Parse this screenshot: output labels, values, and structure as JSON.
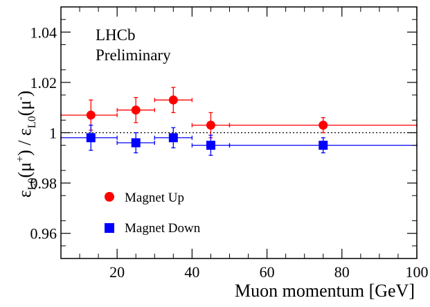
{
  "chart_data": {
    "type": "scatter",
    "xlabel": "Muon momentum [GeV]",
    "ylabel": "ε_L0(μ⁺) / ε_L0(μ⁻)",
    "xlim": [
      5,
      100
    ],
    "ylim": [
      0.95,
      1.05
    ],
    "x_ticks": [
      {
        "value": 20,
        "label": "20"
      },
      {
        "value": 40,
        "label": "40"
      },
      {
        "value": 60,
        "label": "60"
      },
      {
        "value": 80,
        "label": "80"
      },
      {
        "value": 100,
        "label": "100"
      }
    ],
    "y_ticks": [
      {
        "value": 0.96,
        "label": "0.96"
      },
      {
        "value": 0.98,
        "label": "0.98"
      },
      {
        "value": 1.0,
        "label": "1"
      },
      {
        "value": 1.02,
        "label": "1.02"
      },
      {
        "value": 1.04,
        "label": "1.04"
      }
    ],
    "annotations": [
      "LHCb",
      "Preliminary"
    ],
    "reference_line": {
      "y": 1.0,
      "style": "dotted"
    },
    "grid": false,
    "legend_position": "lower-left",
    "series": [
      {
        "name": "Magnet Up",
        "marker": "circle",
        "color": "#ff0000",
        "points": [
          {
            "x": 13,
            "xlo": 5,
            "xhi": 20,
            "y": 1.007,
            "yerr": 0.006
          },
          {
            "x": 25,
            "xlo": 20,
            "xhi": 30,
            "y": 1.009,
            "yerr": 0.005
          },
          {
            "x": 35,
            "xlo": 30,
            "xhi": 40,
            "y": 1.013,
            "yerr": 0.005
          },
          {
            "x": 45,
            "xlo": 40,
            "xhi": 50,
            "y": 1.003,
            "yerr": 0.005
          },
          {
            "x": 75,
            "xlo": 50,
            "xhi": 100,
            "y": 1.003,
            "yerr": 0.003
          }
        ]
      },
      {
        "name": "Magnet Down",
        "marker": "square",
        "color": "#0000ff",
        "points": [
          {
            "x": 13,
            "xlo": 5,
            "xhi": 20,
            "y": 0.998,
            "yerr": 0.005
          },
          {
            "x": 25,
            "xlo": 20,
            "xhi": 30,
            "y": 0.996,
            "yerr": 0.004
          },
          {
            "x": 35,
            "xlo": 30,
            "xhi": 40,
            "y": 0.998,
            "yerr": 0.004
          },
          {
            "x": 45,
            "xlo": 40,
            "xhi": 50,
            "y": 0.995,
            "yerr": 0.004
          },
          {
            "x": 75,
            "xlo": 50,
            "xhi": 100,
            "y": 0.995,
            "yerr": 0.003
          }
        ]
      }
    ]
  }
}
